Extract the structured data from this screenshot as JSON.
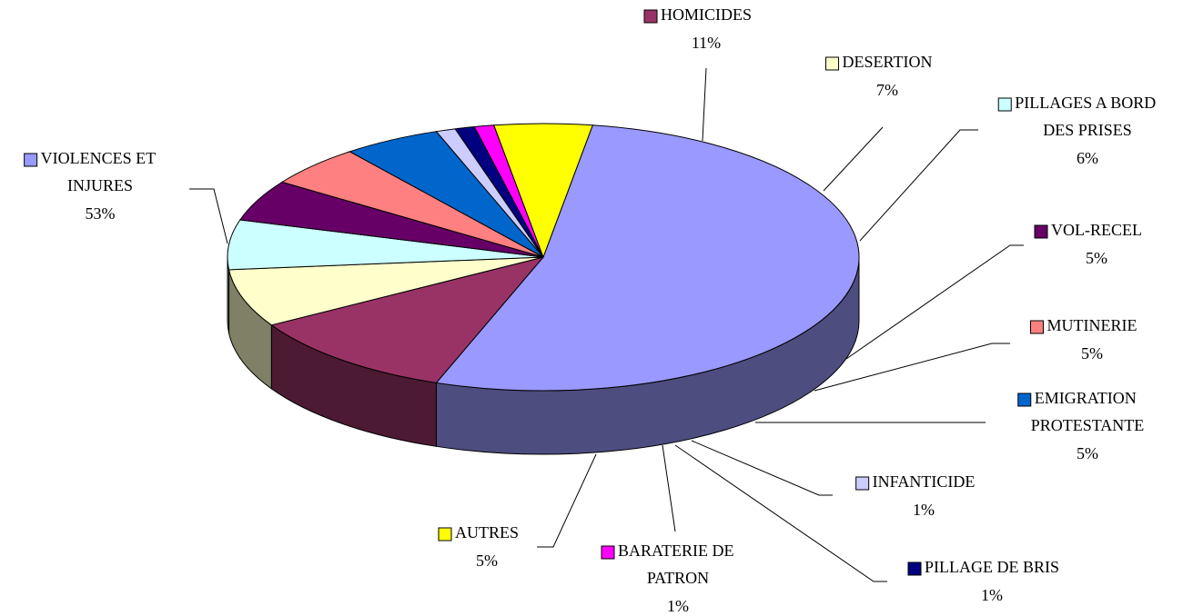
{
  "chart_data": {
    "type": "pie3d",
    "categories": [
      "VIOLENCES ET INJURES",
      "HOMICIDES",
      "DESERTION",
      "PILLAGES A BORD DES PRISES",
      "VOL-RECEL",
      "MUTINERIE",
      "EMIGRATION PROTESTANTE",
      "INFANTICIDE",
      "PILLAGE DE BRIS",
      "BARATERIE DE PATRON",
      "AUTRES"
    ],
    "values": [
      53,
      11,
      7,
      6,
      5,
      5,
      5,
      1,
      1,
      1,
      5
    ],
    "value_labels": [
      "53%",
      "11%",
      "7%",
      "6%",
      "5%",
      "5%",
      "5%",
      "1%",
      "1%",
      "1%",
      "5%"
    ],
    "colors": [
      "#9999FF",
      "#993366",
      "#FFFFCC",
      "#CCFFFF",
      "#660066",
      "#FF8080",
      "#0066CC",
      "#CCCCFF",
      "#000080",
      "#FF00FF",
      "#FFFF00"
    ]
  }
}
